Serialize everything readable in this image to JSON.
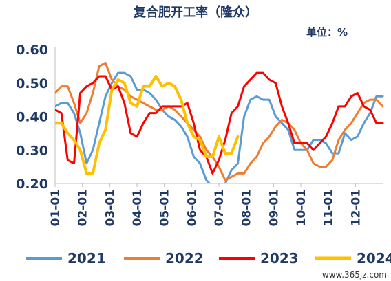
{
  "chart_data": {
    "type": "line",
    "title": "复合肥开工率（隆众）",
    "unit_label": "单位：%",
    "ylim": [
      0.2,
      0.6
    ],
    "yticks": [
      "0.60",
      "0.50",
      "0.40",
      "0.30",
      "0.20"
    ],
    "xticks": [
      "01-01",
      "02-01",
      "03-01",
      "04-01",
      "05-01",
      "06-01",
      "07-01",
      "08-01",
      "09-01",
      "10-01",
      "11-01",
      "12-01"
    ],
    "x_range_weeks": [
      0,
      52
    ],
    "grid": false,
    "legend_position": "bottom",
    "series": [
      {
        "name": "2021",
        "color": "#5b9bd5",
        "x": [
          0,
          1,
          2,
          3,
          4,
          5,
          6,
          7,
          8,
          9,
          10,
          11,
          12,
          13,
          14,
          15,
          16,
          17,
          18,
          19,
          20,
          21,
          22,
          23,
          24,
          25,
          26,
          27,
          28,
          29,
          30,
          31,
          32,
          33,
          34,
          35,
          36,
          37,
          38,
          39,
          40,
          41,
          42,
          43,
          44,
          45,
          46,
          47,
          48,
          49,
          50,
          51,
          52
        ],
        "values": [
          0.43,
          0.44,
          0.44,
          0.41,
          0.35,
          0.26,
          0.3,
          0.38,
          0.46,
          0.5,
          0.53,
          0.53,
          0.52,
          0.48,
          0.48,
          0.47,
          0.45,
          0.42,
          0.4,
          0.39,
          0.37,
          0.34,
          0.28,
          0.26,
          0.21,
          0.19,
          0.16,
          0.2,
          0.24,
          0.26,
          0.4,
          0.45,
          0.46,
          0.45,
          0.45,
          0.4,
          0.38,
          0.36,
          0.3,
          0.3,
          0.3,
          0.33,
          0.33,
          0.32,
          0.29,
          0.29,
          0.35,
          0.33,
          0.34,
          0.38,
          0.41,
          0.46,
          0.46
        ]
      },
      {
        "name": "2022",
        "color": "#ed7d31",
        "x": [
          0,
          1,
          2,
          3,
          4,
          5,
          6,
          7,
          8,
          9,
          10,
          11,
          12,
          13,
          14,
          15,
          16,
          17,
          18,
          19,
          20,
          21,
          22,
          23,
          24,
          25,
          26,
          27,
          28,
          29,
          30,
          31,
          32,
          33,
          34,
          35,
          36,
          37,
          38,
          39,
          40,
          41,
          42,
          43,
          44,
          45,
          46,
          47,
          48,
          49,
          50,
          51,
          52
        ],
        "values": [
          0.47,
          0.49,
          0.49,
          0.44,
          0.38,
          0.41,
          0.47,
          0.55,
          0.56,
          0.51,
          0.49,
          0.48,
          0.46,
          0.45,
          0.44,
          0.43,
          0.42,
          0.42,
          0.43,
          0.42,
          0.4,
          0.38,
          0.36,
          0.34,
          0.3,
          0.28,
          0.25,
          0.21,
          0.22,
          0.23,
          0.23,
          0.26,
          0.28,
          0.32,
          0.34,
          0.37,
          0.39,
          0.38,
          0.36,
          0.32,
          0.3,
          0.26,
          0.25,
          0.25,
          0.27,
          0.33,
          0.36,
          0.38,
          0.41,
          0.44,
          0.45,
          0.45,
          0.43
        ]
      },
      {
        "name": "2023",
        "color": "#ff0000",
        "x": [
          0,
          1,
          2,
          3,
          4,
          5,
          6,
          7,
          8,
          9,
          10,
          11,
          12,
          13,
          14,
          15,
          16,
          17,
          18,
          19,
          20,
          21,
          22,
          23,
          24,
          25,
          26,
          27,
          28,
          29,
          30,
          31,
          32,
          33,
          34,
          35,
          36,
          37,
          38,
          39,
          40,
          41,
          42,
          43,
          44,
          45,
          46,
          47,
          48,
          49,
          50,
          51,
          52
        ],
        "values": [
          0.42,
          0.41,
          0.27,
          0.26,
          0.47,
          0.49,
          0.5,
          0.52,
          0.52,
          0.48,
          0.49,
          0.44,
          0.35,
          0.34,
          0.38,
          0.41,
          0.41,
          0.43,
          0.43,
          0.43,
          0.43,
          0.44,
          0.38,
          0.3,
          0.28,
          0.23,
          0.27,
          0.33,
          0.41,
          0.43,
          0.49,
          0.51,
          0.53,
          0.53,
          0.51,
          0.5,
          0.43,
          0.38,
          0.32,
          0.32,
          0.32,
          0.3,
          0.32,
          0.34,
          0.38,
          0.43,
          0.43,
          0.46,
          0.47,
          0.43,
          0.42,
          0.38,
          0.38
        ]
      },
      {
        "name": "2024",
        "color": "#ffc000",
        "x": [
          0,
          1,
          2,
          3,
          4,
          5,
          6,
          7,
          8,
          9,
          10,
          11,
          12,
          13,
          14,
          15,
          16,
          17,
          18,
          19,
          20,
          21,
          22,
          23,
          24,
          25,
          26,
          27,
          28,
          29
        ],
        "values": [
          0.38,
          0.38,
          0.35,
          0.33,
          0.3,
          0.23,
          0.23,
          0.32,
          0.36,
          0.48,
          0.51,
          0.5,
          0.44,
          0.43,
          0.49,
          0.49,
          0.52,
          0.49,
          0.5,
          0.49,
          0.45,
          0.38,
          0.34,
          0.33,
          0.28,
          0.28,
          0.34,
          0.29,
          0.29,
          0.34
        ]
      }
    ]
  },
  "watermark": "www.365jz.com"
}
